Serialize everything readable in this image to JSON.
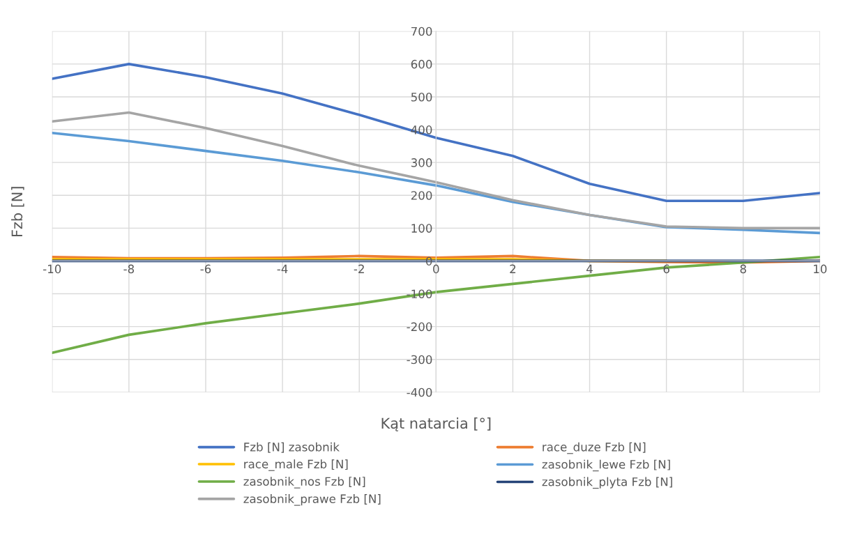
{
  "chart_data": {
    "type": "line",
    "xlabel": "Kąt natarcia [°]",
    "ylabel": "Fzb [N]",
    "x": [
      -10,
      -8,
      -6,
      -4,
      -2,
      0,
      2,
      4,
      6,
      8,
      10
    ],
    "xlim": [
      -10,
      10
    ],
    "xticks": [
      -10,
      -8,
      -6,
      -4,
      -2,
      0,
      2,
      4,
      6,
      8,
      10
    ],
    "ylim": [
      -400,
      700
    ],
    "yticks": [
      -400,
      -300,
      -200,
      -100,
      0,
      100,
      200,
      300,
      400,
      500,
      600,
      700
    ],
    "grid": true,
    "legend": "bottom",
    "marker": "none",
    "line_style": "solid",
    "series": [
      {
        "name": "Fzb [N] zasobnik",
        "color": "#4472c4",
        "values": [
          555,
          600,
          560,
          510,
          445,
          375,
          320,
          235,
          183,
          183,
          207
        ]
      },
      {
        "name": "race_duze Fzb [N]",
        "color": "#ed7d31",
        "values": [
          12,
          8,
          8,
          10,
          15,
          10,
          15,
          0,
          -3,
          -5,
          0
        ]
      },
      {
        "name": "race_male Fzb [N]",
        "color": "#ffc000",
        "values": [
          5,
          5,
          5,
          5,
          5,
          5,
          5,
          0,
          0,
          null,
          null
        ]
      },
      {
        "name": "zasobnik_lewe Fzb [N]",
        "color": "#5b9bd5",
        "values": [
          390,
          365,
          335,
          305,
          270,
          230,
          180,
          140,
          103,
          95,
          85
        ]
      },
      {
        "name": "zasobnik_nos Fzb [N]",
        "color": "#70ad47",
        "values": [
          -280,
          -225,
          -190,
          -160,
          -130,
          -95,
          -70,
          -45,
          -20,
          -5,
          12
        ]
      },
      {
        "name": "zasobnik_plyta Fzb [N]",
        "color": "#264478",
        "values": [
          0,
          0,
          0,
          0,
          0,
          0,
          0,
          0,
          0,
          0,
          0
        ]
      },
      {
        "name": "zasobnik_prawe Fzb [N]",
        "color": "#a5a5a5",
        "values": [
          425,
          452,
          405,
          350,
          290,
          240,
          185,
          140,
          105,
          100,
          100
        ]
      }
    ]
  }
}
